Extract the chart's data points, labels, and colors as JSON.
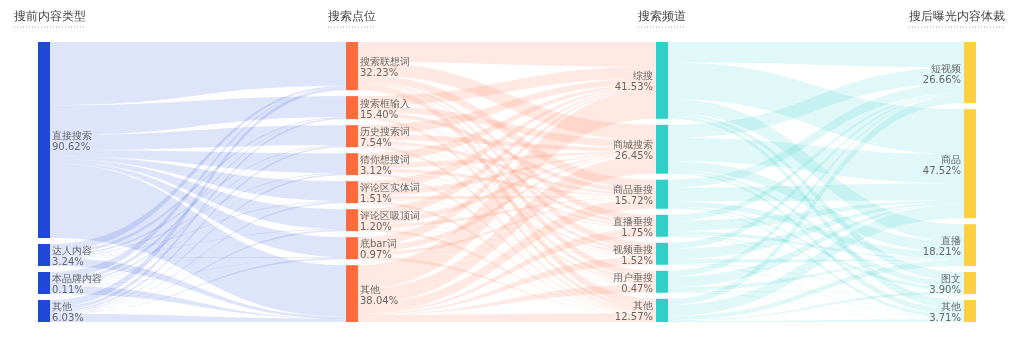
{
  "chart_data": [
    {
      "type": "other",
      "title": "搜前内容类型",
      "color": "#1f48d6",
      "categories": [
        "直接搜索",
        "达人内容",
        "本品牌内容",
        "其他"
      ],
      "values": [
        90.62,
        3.24,
        0.11,
        6.03
      ],
      "value_labels": [
        "90.62%",
        "3.24%",
        "0.11%",
        "6.03%"
      ]
    },
    {
      "type": "other",
      "title": "搜索点位",
      "color": "#ff6b3d",
      "categories": [
        "搜索联想词",
        "搜索框输入",
        "历史搜索词",
        "猜你想搜词",
        "评论区实体词",
        "评论区吸顶词",
        "底bar词",
        "其他"
      ],
      "values": [
        32.23,
        15.4,
        7.54,
        3.12,
        1.51,
        1.2,
        0.97,
        38.04
      ],
      "value_labels": [
        "32.23%",
        "15.40%",
        "7.54%",
        "3.12%",
        "1.51%",
        "1.20%",
        "0.97%",
        "38.04%"
      ]
    },
    {
      "type": "other",
      "title": "搜索频道",
      "color": "#2fd0c8",
      "categories": [
        "综搜",
        "商城搜索",
        "商品垂搜",
        "直播垂搜",
        "视频垂搜",
        "用户垂搜",
        "其他"
      ],
      "values": [
        41.53,
        26.45,
        15.72,
        1.75,
        1.52,
        0.47,
        12.57
      ],
      "value_labels": [
        "41.53%",
        "26.45%",
        "15.72%",
        "1.75%",
        "1.52%",
        "0.47%",
        "12.57%"
      ]
    },
    {
      "type": "other",
      "title": "搜后曝光内容体裁",
      "color": "#ffd040",
      "categories": [
        "短视频",
        "商品",
        "直播",
        "图文",
        "其他"
      ],
      "values": [
        26.66,
        47.52,
        18.21,
        3.9,
        3.71
      ],
      "value_labels": [
        "26.66%",
        "47.52%",
        "18.21%",
        "3.90%",
        "3.71%"
      ]
    }
  ]
}
